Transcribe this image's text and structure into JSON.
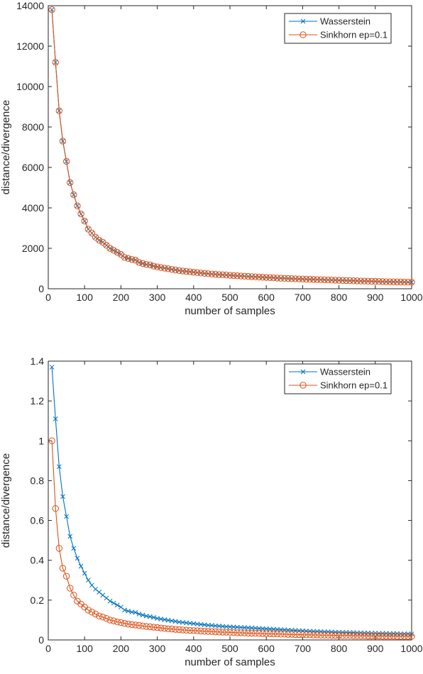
{
  "colors": {
    "wasserstein": "#0072BD",
    "sinkhorn": "#D95319",
    "axis": "#262626",
    "background": "#ffffff"
  },
  "chart_data": [
    {
      "type": "line",
      "title": "",
      "xlabel": "number of samples",
      "ylabel": "distance/divergence",
      "xlim": [
        0,
        1000
      ],
      "ylim": [
        0,
        14000
      ],
      "xticks": [
        0,
        100,
        200,
        300,
        400,
        500,
        600,
        700,
        800,
        900,
        1000
      ],
      "xtick_labels": [
        "0",
        "100",
        "200",
        "300",
        "400",
        "500",
        "600",
        "700",
        "800",
        "900",
        "1000"
      ],
      "yticks": [
        0,
        2000,
        4000,
        6000,
        8000,
        10000,
        12000,
        14000
      ],
      "ytick_labels": [
        "0",
        "2000",
        "4000",
        "6000",
        "8000",
        "10000",
        "12000",
        "14000"
      ],
      "grid": false,
      "legend": "top-right",
      "x": [
        10,
        20,
        30,
        40,
        50,
        60,
        70,
        80,
        90,
        100,
        110,
        120,
        130,
        140,
        150,
        160,
        170,
        180,
        190,
        200,
        210,
        220,
        230,
        240,
        250,
        260,
        270,
        280,
        290,
        300,
        310,
        320,
        330,
        340,
        350,
        360,
        370,
        380,
        390,
        400,
        410,
        420,
        430,
        440,
        450,
        460,
        470,
        480,
        490,
        500,
        510,
        520,
        530,
        540,
        550,
        560,
        570,
        580,
        590,
        600,
        610,
        620,
        630,
        640,
        650,
        660,
        670,
        680,
        690,
        700,
        710,
        720,
        730,
        740,
        750,
        760,
        770,
        780,
        790,
        800,
        810,
        820,
        830,
        840,
        850,
        860,
        870,
        880,
        890,
        900,
        910,
        920,
        930,
        940,
        950,
        960,
        970,
        980,
        990,
        1000
      ],
      "series": [
        {
          "name": "Wasserstein",
          "marker": "x",
          "color": "#0072BD",
          "values": [
            13800,
            11200,
            8800,
            7300,
            6300,
            5250,
            4650,
            4100,
            3700,
            3350,
            2950,
            2750,
            2550,
            2400,
            2300,
            2150,
            2000,
            1900,
            1800,
            1700,
            1550,
            1500,
            1450,
            1420,
            1300,
            1250,
            1200,
            1180,
            1120,
            1080,
            1050,
            1020,
            990,
            960,
            930,
            900,
            880,
            860,
            840,
            820,
            800,
            780,
            760,
            745,
            730,
            715,
            700,
            690,
            680,
            665,
            650,
            640,
            630,
            620,
            610,
            600,
            590,
            580,
            570,
            560,
            550,
            540,
            530,
            522,
            515,
            508,
            500,
            493,
            486,
            480,
            473,
            466,
            460,
            454,
            448,
            442,
            436,
            430,
            424,
            418,
            412,
            406,
            400,
            395,
            390,
            385,
            380,
            375,
            370,
            365,
            360,
            355,
            350,
            346,
            342,
            338,
            334,
            330,
            326,
            322
          ]
        },
        {
          "name": "Sinkhorn ep=0.1",
          "marker": "o",
          "color": "#D95319",
          "values": [
            13800,
            11200,
            8800,
            7300,
            6300,
            5250,
            4650,
            4100,
            3700,
            3350,
            2950,
            2750,
            2550,
            2400,
            2300,
            2150,
            2000,
            1900,
            1800,
            1700,
            1550,
            1500,
            1450,
            1420,
            1300,
            1250,
            1200,
            1180,
            1120,
            1080,
            1050,
            1020,
            990,
            960,
            930,
            900,
            880,
            860,
            840,
            820,
            800,
            780,
            760,
            745,
            730,
            715,
            700,
            690,
            680,
            665,
            650,
            640,
            630,
            620,
            610,
            600,
            590,
            580,
            570,
            560,
            550,
            540,
            530,
            522,
            515,
            508,
            500,
            493,
            486,
            480,
            473,
            466,
            460,
            454,
            448,
            442,
            436,
            430,
            424,
            418,
            412,
            406,
            400,
            395,
            390,
            385,
            380,
            375,
            370,
            365,
            360,
            355,
            350,
            346,
            342,
            338,
            334,
            330,
            326,
            322
          ]
        }
      ]
    },
    {
      "type": "line",
      "title": "",
      "xlabel": "number of samples",
      "ylabel": "distance/divergence",
      "xlim": [
        0,
        1000
      ],
      "ylim": [
        0,
        1.4
      ],
      "xticks": [
        0,
        100,
        200,
        300,
        400,
        500,
        600,
        700,
        800,
        900,
        1000
      ],
      "xtick_labels": [
        "0",
        "100",
        "200",
        "300",
        "400",
        "500",
        "600",
        "700",
        "800",
        "900",
        "1000"
      ],
      "yticks": [
        0,
        0.2,
        0.4,
        0.6,
        0.8,
        1,
        1.2,
        1.4
      ],
      "ytick_labels": [
        "0",
        "0.2",
        "0.4",
        "0.6",
        "0.8",
        "1",
        "1.2",
        "1.4"
      ],
      "grid": false,
      "legend": "top-right",
      "x": [
        10,
        20,
        30,
        40,
        50,
        60,
        70,
        80,
        90,
        100,
        110,
        120,
        130,
        140,
        150,
        160,
        170,
        180,
        190,
        200,
        210,
        220,
        230,
        240,
        250,
        260,
        270,
        280,
        290,
        300,
        310,
        320,
        330,
        340,
        350,
        360,
        370,
        380,
        390,
        400,
        410,
        420,
        430,
        440,
        450,
        460,
        470,
        480,
        490,
        500,
        510,
        520,
        530,
        540,
        550,
        560,
        570,
        580,
        590,
        600,
        610,
        620,
        630,
        640,
        650,
        660,
        670,
        680,
        690,
        700,
        710,
        720,
        730,
        740,
        750,
        760,
        770,
        780,
        790,
        800,
        810,
        820,
        830,
        840,
        850,
        860,
        870,
        880,
        890,
        900,
        910,
        920,
        930,
        940,
        950,
        960,
        970,
        980,
        990,
        1000
      ],
      "series": [
        {
          "name": "Wasserstein",
          "marker": "x",
          "color": "#0072BD",
          "values": [
            1.37,
            1.11,
            0.87,
            0.72,
            0.62,
            0.52,
            0.46,
            0.41,
            0.37,
            0.335,
            0.3,
            0.275,
            0.255,
            0.24,
            0.225,
            0.21,
            0.195,
            0.185,
            0.175,
            0.165,
            0.15,
            0.145,
            0.14,
            0.138,
            0.13,
            0.125,
            0.12,
            0.117,
            0.113,
            0.108,
            0.105,
            0.102,
            0.099,
            0.096,
            0.093,
            0.09,
            0.088,
            0.086,
            0.084,
            0.082,
            0.08,
            0.078,
            0.076,
            0.074,
            0.073,
            0.071,
            0.07,
            0.068,
            0.067,
            0.066,
            0.065,
            0.064,
            0.063,
            0.062,
            0.061,
            0.06,
            0.059,
            0.058,
            0.057,
            0.056,
            0.055,
            0.054,
            0.053,
            0.052,
            0.051,
            0.05,
            0.049,
            0.048,
            0.047,
            0.046,
            0.045,
            0.044,
            0.043,
            0.043,
            0.042,
            0.041,
            0.041,
            0.04,
            0.039,
            0.039,
            0.038,
            0.038,
            0.037,
            0.037,
            0.036,
            0.036,
            0.035,
            0.035,
            0.034,
            0.034,
            0.033,
            0.033,
            0.033,
            0.032,
            0.032,
            0.032,
            0.031,
            0.031,
            0.031,
            0.03
          ]
        },
        {
          "name": "Sinkhorn ep=0.1",
          "marker": "o",
          "color": "#D95319",
          "values": [
            1.0,
            0.66,
            0.46,
            0.36,
            0.32,
            0.26,
            0.225,
            0.195,
            0.18,
            0.165,
            0.15,
            0.14,
            0.13,
            0.12,
            0.115,
            0.108,
            0.1,
            0.096,
            0.09,
            0.087,
            0.083,
            0.08,
            0.077,
            0.075,
            0.073,
            0.07,
            0.068,
            0.066,
            0.064,
            0.062,
            0.06,
            0.058,
            0.056,
            0.055,
            0.053,
            0.052,
            0.05,
            0.049,
            0.048,
            0.047,
            0.046,
            0.045,
            0.044,
            0.043,
            0.042,
            0.041,
            0.04,
            0.039,
            0.039,
            0.038,
            0.037,
            0.036,
            0.036,
            0.035,
            0.034,
            0.034,
            0.033,
            0.033,
            0.032,
            0.031,
            0.031,
            0.03,
            0.03,
            0.029,
            0.029,
            0.028,
            0.028,
            0.027,
            0.027,
            0.026,
            0.026,
            0.026,
            0.025,
            0.025,
            0.024,
            0.024,
            0.024,
            0.023,
            0.023,
            0.023,
            0.022,
            0.022,
            0.022,
            0.021,
            0.021,
            0.021,
            0.021,
            0.02,
            0.02,
            0.02,
            0.02,
            0.019,
            0.019,
            0.019,
            0.019,
            0.018,
            0.018,
            0.018,
            0.018,
            0.018
          ]
        }
      ]
    }
  ]
}
